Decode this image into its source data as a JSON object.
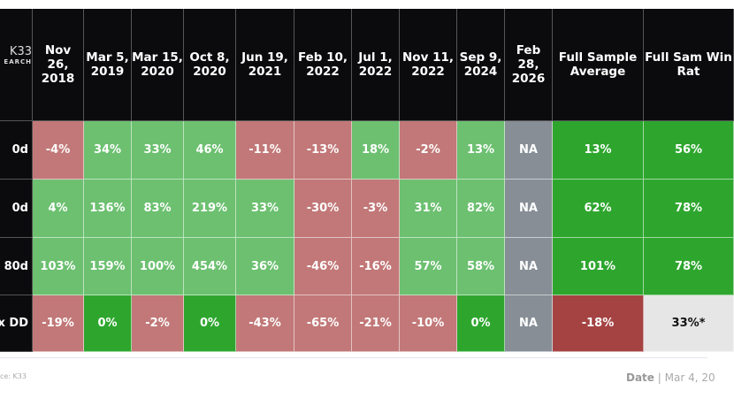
{
  "brand": {
    "line1": "K33",
    "line2": "EARCH"
  },
  "chart_data": {
    "type": "table",
    "columns": [
      "Nov 26, 2018",
      "Mar 5, 2019",
      "Mar 15, 2020",
      "Oct 8, 2020",
      "Jun 19, 2021",
      "Feb 10, 2022",
      "Jul 1, 2022",
      "Nov 11, 2022",
      "Sep 9, 2024",
      "Feb 28, 2026",
      "Full Sample Average",
      "Full Sam Win Rat"
    ],
    "rows": [
      {
        "label": "0d",
        "values": [
          "-4%",
          "34%",
          "33%",
          "46%",
          "-11%",
          "-13%",
          "18%",
          "-2%",
          "13%",
          "NA",
          "13%",
          "56%"
        ]
      },
      {
        "label": "0d",
        "values": [
          "4%",
          "136%",
          "83%",
          "219%",
          "33%",
          "-30%",
          "-3%",
          "31%",
          "82%",
          "NA",
          "62%",
          "78%"
        ]
      },
      {
        "label": "80d",
        "values": [
          "103%",
          "159%",
          "100%",
          "454%",
          "36%",
          "-46%",
          "-16%",
          "57%",
          "58%",
          "NA",
          "101%",
          "78%"
        ]
      },
      {
        "label": "x DD",
        "values": [
          "-19%",
          "0%",
          "-2%",
          "0%",
          "-43%",
          "-65%",
          "-21%",
          "-10%",
          "0%",
          "NA",
          "-18%",
          "33%*"
        ]
      }
    ]
  },
  "colors": {
    "header": "#0b0b0d",
    "negative": "#c27878",
    "positive": "#6cc070",
    "strong_positive": "#2ea62e",
    "na": "#878e96",
    "strong_negative": "#a54343",
    "neutral": "#e6e6e6"
  },
  "footer": {
    "source": "ce: K33",
    "date_label": "Date",
    "date_value": "| Mar 4, 20"
  }
}
